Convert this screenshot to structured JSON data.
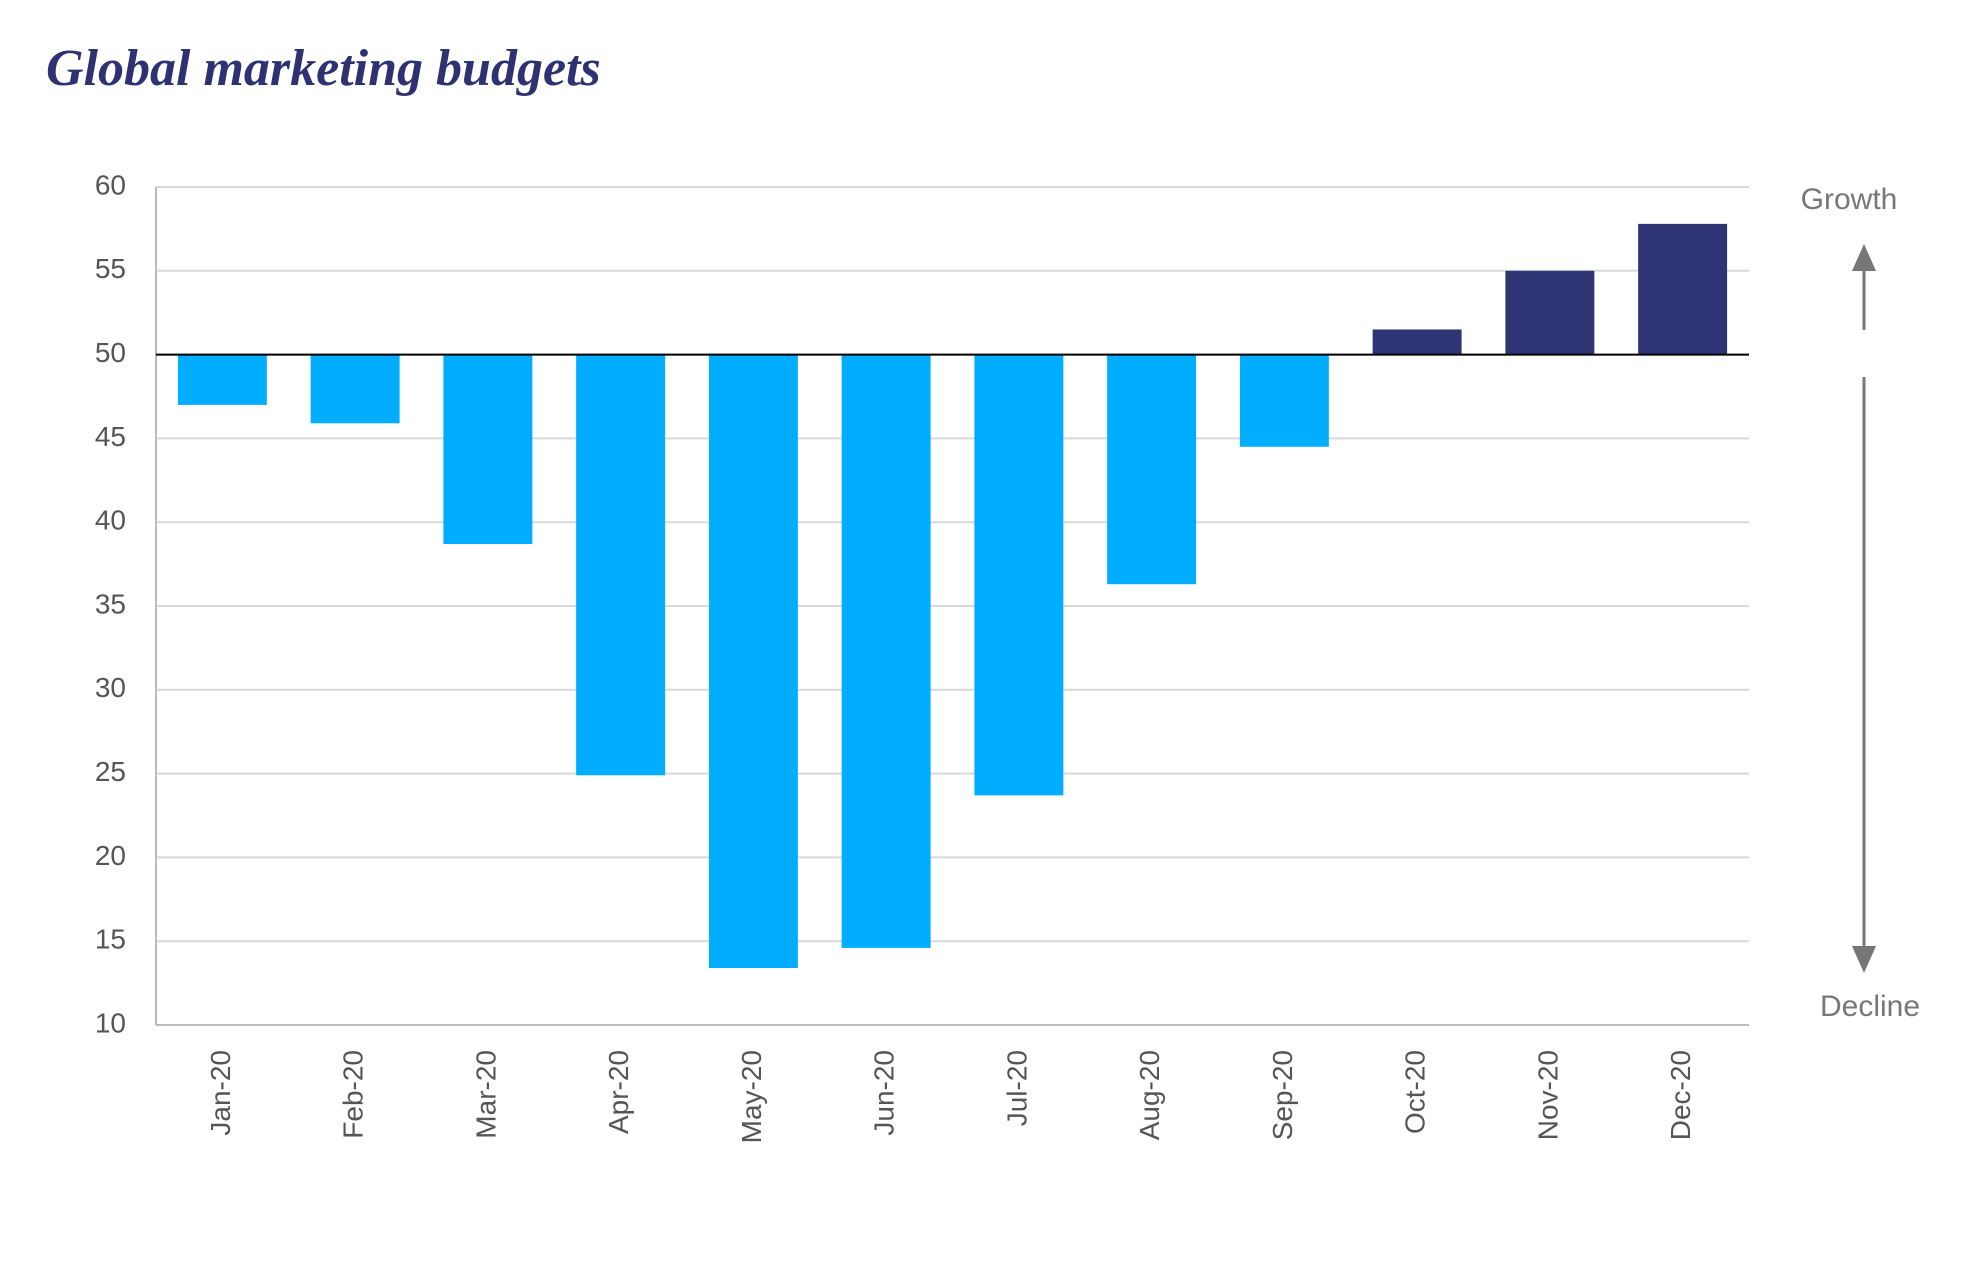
{
  "chart_data": {
    "type": "bar",
    "title": "Global marketing budgets",
    "categories": [
      "Jan-20",
      "Feb-20",
      "Mar-20",
      "Apr-20",
      "May-20",
      "Jun-20",
      "Jul-20",
      "Aug-20",
      "Sep-20",
      "Oct-20",
      "Nov-20",
      "Dec-20"
    ],
    "values": [
      47,
      45.9,
      38.7,
      24.9,
      13.4,
      14.6,
      23.7,
      36.3,
      44.5,
      51.5,
      55,
      57.8
    ],
    "baseline": 50,
    "color_below": "#00adff",
    "color_above": "#2f3474",
    "ylim": [
      10,
      60
    ],
    "yticks": [
      10,
      15,
      20,
      25,
      30,
      35,
      40,
      45,
      50,
      55,
      60
    ],
    "grid": true,
    "annotations": [
      "Growth",
      "Decline"
    ]
  }
}
